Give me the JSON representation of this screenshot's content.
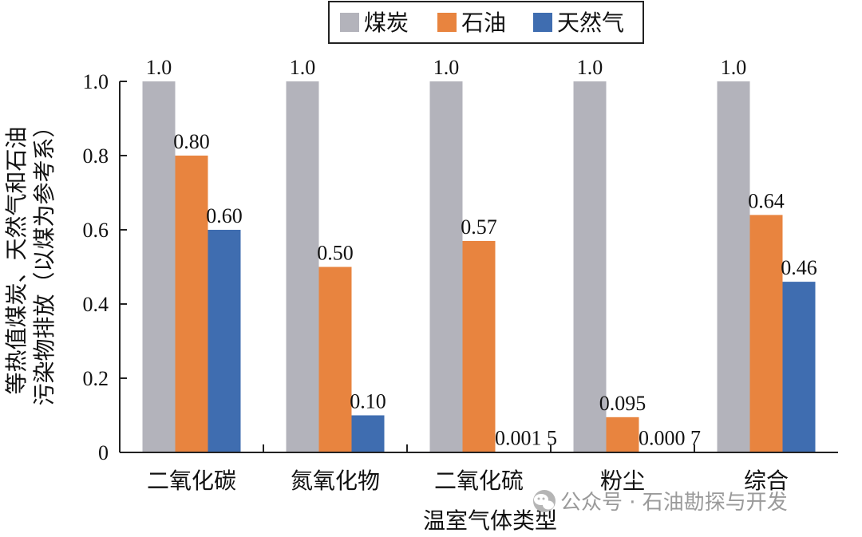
{
  "chart_data": {
    "type": "bar",
    "categories": [
      "二氧化碳",
      "氮氧化物",
      "二氧化硫",
      "粉尘",
      "综合"
    ],
    "series": [
      {
        "name": "煤炭",
        "values": [
          1.0,
          1.0,
          1.0,
          1.0,
          1.0
        ],
        "labels": [
          "1.0",
          "1.0",
          "1.0",
          "1.0",
          "1.0"
        ],
        "color": "#b3b3bb"
      },
      {
        "name": "石油",
        "values": [
          0.8,
          0.5,
          0.57,
          0.095,
          0.64
        ],
        "labels": [
          "0.80",
          "0.50",
          "0.57",
          "0.095",
          "0.64"
        ],
        "color": "#e8843f"
      },
      {
        "name": "天然气",
        "values": [
          0.6,
          0.1,
          0.0015,
          0.0007,
          0.46
        ],
        "labels": [
          "0.60",
          "0.10",
          "0.001 5",
          "0.000 7",
          "0.46"
        ],
        "color": "#3f6db0"
      }
    ],
    "xlabel": "温室气体类型",
    "ylabel": "等热值煤炭、天然气和石油污染物排放（以煤为参考系）",
    "ylabel_lines": [
      "等热值煤炭、天然气和石油",
      "污染物排放（以煤为参考系）"
    ],
    "ylim": [
      0,
      1.0
    ],
    "yticks": [
      0,
      0.2,
      0.4,
      0.6,
      0.8,
      1.0
    ],
    "ytick_labels": [
      "0",
      "0.2",
      "0.4",
      "0.6",
      "0.8",
      "1.0"
    ],
    "legend_position": "top-center",
    "grid": false
  },
  "watermark": {
    "text": "公众号 · 石油勘探与开发",
    "icon": "wechat-icon"
  }
}
